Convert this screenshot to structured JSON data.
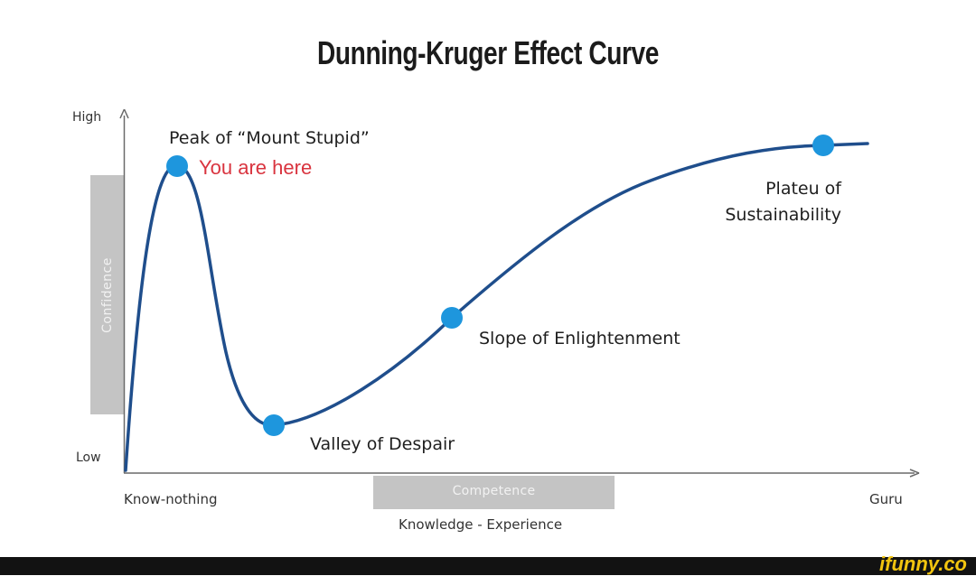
{
  "title": "Dunning-Kruger Effect Curve",
  "y_axis": {
    "high_label": "High",
    "low_label": "Low",
    "name": "Confidence"
  },
  "x_axis": {
    "left_label": "Know-nothing",
    "right_label": "Guru",
    "name": "Competence",
    "caption": "Knowledge - Experience"
  },
  "points": {
    "peak": {
      "label": "Peak of “Mount Stupid”",
      "marker": "You are here"
    },
    "valley": {
      "label": "Valley of Despair"
    },
    "slope": {
      "label": "Slope of Enlightenment"
    },
    "plateau": {
      "label_line1": "Plateu of",
      "label_line2": "Sustainability"
    }
  },
  "colors": {
    "curve": "#1f4e8c",
    "dot": "#1e96dd",
    "you_are_here": "#d9343f",
    "shade": "#c4c4c4"
  },
  "brand": "ifunny.co"
}
